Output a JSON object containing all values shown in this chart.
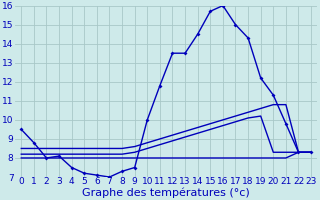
{
  "xlabel": "Graphe des températures (°c)",
  "bg_color": "#ceeaea",
  "grid_color": "#a8c8c8",
  "line_color": "#0000bb",
  "xlim": [
    -0.5,
    23.5
  ],
  "ylim": [
    7,
    16
  ],
  "yticks": [
    7,
    8,
    9,
    10,
    11,
    12,
    13,
    14,
    15,
    16
  ],
  "xticks": [
    0,
    1,
    2,
    3,
    4,
    5,
    6,
    7,
    8,
    9,
    10,
    11,
    12,
    13,
    14,
    15,
    16,
    17,
    18,
    19,
    20,
    21,
    22,
    23
  ],
  "line1_x": [
    0,
    1,
    2,
    3,
    4,
    5,
    6,
    7,
    8,
    9,
    10,
    11,
    12,
    13,
    14,
    15,
    16,
    17,
    18,
    19,
    20,
    21,
    22,
    23
  ],
  "line1_y": [
    9.5,
    8.8,
    8.0,
    8.1,
    7.5,
    7.2,
    7.1,
    7.0,
    7.3,
    7.5,
    10.0,
    11.8,
    13.5,
    13.5,
    14.5,
    15.7,
    16.0,
    15.0,
    14.3,
    12.2,
    11.3,
    9.8,
    8.3,
    8.3
  ],
  "line2_x": [
    0,
    1,
    2,
    3,
    4,
    5,
    6,
    7,
    8,
    9,
    10,
    11,
    12,
    13,
    14,
    15,
    16,
    17,
    18,
    19,
    20,
    21,
    22,
    23
  ],
  "line2_y": [
    8.5,
    8.5,
    8.5,
    8.5,
    8.5,
    8.5,
    8.5,
    8.5,
    8.5,
    8.6,
    8.8,
    9.0,
    9.2,
    9.4,
    9.6,
    9.8,
    10.0,
    10.2,
    10.4,
    10.6,
    10.8,
    10.8,
    8.3,
    8.3
  ],
  "line3_x": [
    0,
    1,
    2,
    3,
    4,
    5,
    6,
    7,
    8,
    9,
    10,
    11,
    12,
    13,
    14,
    15,
    16,
    17,
    18,
    19,
    20,
    21,
    22,
    23
  ],
  "line3_y": [
    8.2,
    8.2,
    8.2,
    8.2,
    8.2,
    8.2,
    8.2,
    8.2,
    8.2,
    8.3,
    8.5,
    8.7,
    8.9,
    9.1,
    9.3,
    9.5,
    9.7,
    9.9,
    10.1,
    10.2,
    8.3,
    8.3,
    8.3,
    8.3
  ],
  "line4_x": [
    0,
    1,
    2,
    3,
    4,
    5,
    6,
    7,
    8,
    9,
    10,
    11,
    12,
    13,
    14,
    15,
    16,
    17,
    18,
    19,
    20,
    21,
    22,
    23
  ],
  "line4_y": [
    8.0,
    8.0,
    8.0,
    8.0,
    8.0,
    8.0,
    8.0,
    8.0,
    8.0,
    8.0,
    8.0,
    8.0,
    8.0,
    8.0,
    8.0,
    8.0,
    8.0,
    8.0,
    8.0,
    8.0,
    8.0,
    8.0,
    8.3,
    8.3
  ],
  "fontsize_label": 8,
  "fontsize_tick": 6.5
}
